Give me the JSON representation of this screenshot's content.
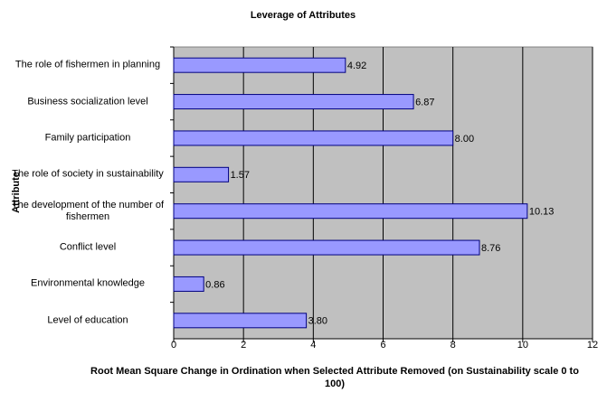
{
  "chart_data": {
    "type": "hbar",
    "title": "Leverage of Attributes",
    "x_label": "Root Mean Square Change in Ordination when Selected Attribute Removed (on Sustainability scale 0 to 100)",
    "y_label": "Attribute",
    "categories": [
      "The role of fishermen in planning",
      "Business socialization level",
      "Family participation",
      "The role of society in sustainability",
      "The development of the number of fishermen",
      "Conflict level",
      "Environmental knowledge",
      "Level of education"
    ],
    "values": [
      4.92,
      6.87,
      8.0,
      1.57,
      10.13,
      8.76,
      0.86,
      3.8
    ],
    "value_labels": [
      "4.92",
      "6.87",
      "8.00",
      "1.57",
      "10.13",
      "8.76",
      "0.86",
      "3.80"
    ],
    "color": "#9999ff",
    "background": "#c0c0c0",
    "xlim": [
      0,
      12
    ],
    "xticks": [
      0,
      2,
      4,
      6,
      8,
      10,
      12
    ],
    "grid": true
  }
}
